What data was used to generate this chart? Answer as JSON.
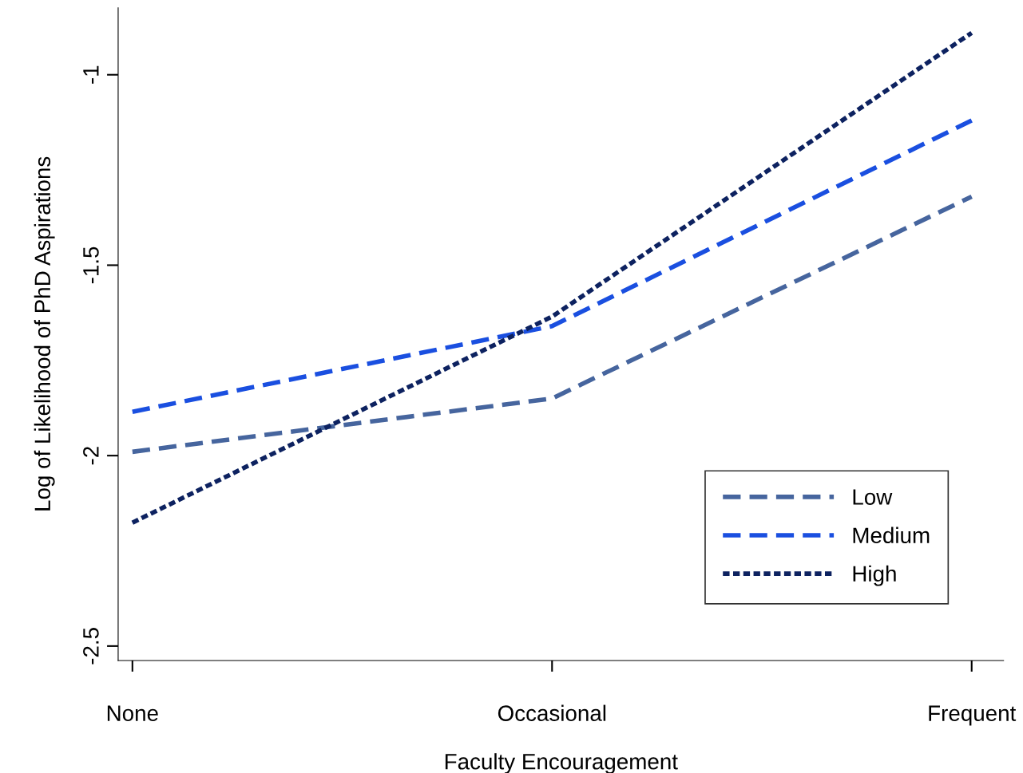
{
  "chart_data": {
    "type": "line",
    "xlabel": "Faculty Encouragement",
    "ylabel": "Log of Likelihood of PhD Aspirations",
    "categories": [
      "None",
      "Occasional",
      "Frequent"
    ],
    "ylim": [
      -2.538,
      -0.824
    ],
    "yticks": [
      -2.5,
      -2,
      -1.5,
      -1
    ],
    "series": [
      {
        "name": "Low",
        "color": "#46659e",
        "line_style": "dashed",
        "values": [
          -1.99,
          -1.85,
          -1.32
        ]
      },
      {
        "name": "Medium",
        "color": "#1a4fe0",
        "line_style": "dashed",
        "values": [
          -1.885,
          -1.66,
          -1.12
        ]
      },
      {
        "name": "High",
        "color": "#0d2260",
        "line_style": "dotted",
        "values": [
          -2.176,
          -1.635,
          -0.89
        ]
      }
    ],
    "grid": false,
    "legend": "bottom right"
  }
}
